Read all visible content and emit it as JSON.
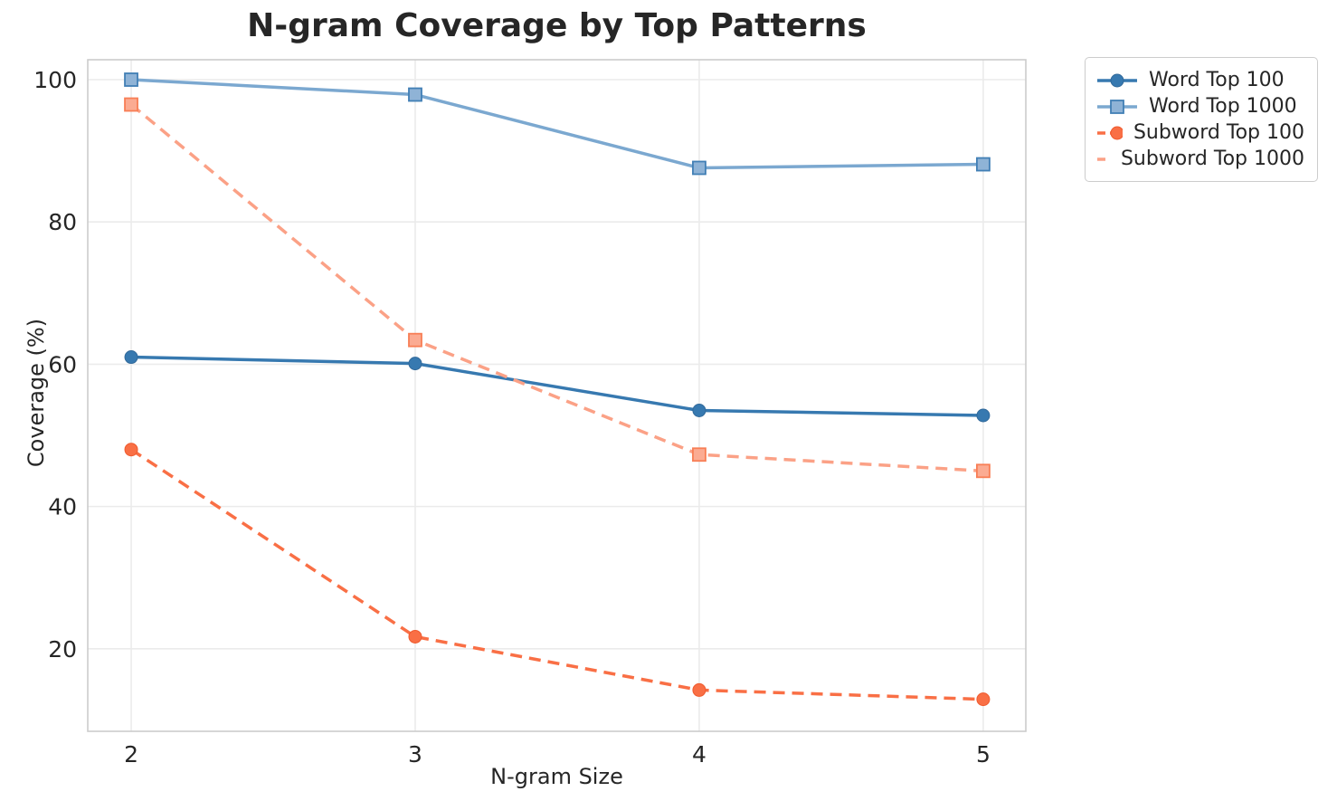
{
  "chart_data": {
    "type": "line",
    "title": "N-gram Coverage by Top Patterns",
    "xlabel": "N-gram Size",
    "ylabel": "Coverage (%)",
    "x": [
      2,
      3,
      4,
      5
    ],
    "x_tick_labels": [
      "2",
      "3",
      "4",
      "5"
    ],
    "y_ticks": [
      20,
      40,
      60,
      80,
      100
    ],
    "y_tick_labels": [
      "20",
      "40",
      "60",
      "80",
      "100"
    ],
    "xlim": [
      1.847,
      5.15
    ],
    "ylim": [
      8.4,
      102.8
    ],
    "grid": true,
    "grid_color": "#ebebeb",
    "spine_color": "#cccccc",
    "text_color": "#262626",
    "legend_position": "outside upper right",
    "series": [
      {
        "name": "Word Top 100",
        "values": [
          61.0,
          60.1,
          53.5,
          52.8
        ],
        "color": "#3779b0",
        "marker_fill": "#3779b0",
        "marker_edge": "#31699a",
        "marker": "circle",
        "line_style": "solid"
      },
      {
        "name": "Word Top 1000",
        "values": [
          100.0,
          97.9,
          87.6,
          88.1
        ],
        "color": "#7ba8d0",
        "marker_fill": "#8fb3d6",
        "marker_edge": "#417fb5",
        "marker": "square",
        "line_style": "solid"
      },
      {
        "name": "Subword Top 100",
        "values": [
          48.0,
          21.7,
          14.2,
          12.9
        ],
        "color": "#f96f45",
        "marker_fill": "#f96f45",
        "marker_edge": "#ef5a2e",
        "marker": "circle",
        "line_style": "dashed"
      },
      {
        "name": "Subword Top 1000",
        "values": [
          96.5,
          63.4,
          47.3,
          45.0
        ],
        "color": "#fba186",
        "marker_fill": "#fbab92",
        "marker_edge": "#f87e55",
        "marker": "square",
        "line_style": "dashed"
      }
    ]
  }
}
